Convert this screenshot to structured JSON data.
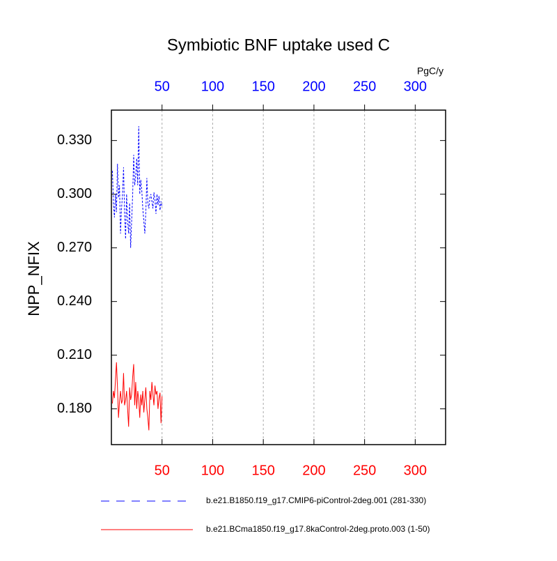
{
  "chart_data": {
    "type": "line",
    "title": "Symbiotic BNF uptake used C",
    "ylabel": "NPP_NFIX",
    "top_axis_label": "PgC/y",
    "x": [
      1,
      2,
      3,
      4,
      5,
      6,
      7,
      8,
      9,
      10,
      11,
      12,
      13,
      14,
      15,
      16,
      17,
      18,
      19,
      20,
      21,
      22,
      23,
      24,
      25,
      26,
      27,
      28,
      29,
      30,
      31,
      32,
      33,
      34,
      35,
      36,
      37,
      38,
      39,
      40,
      41,
      42,
      43,
      44,
      45,
      46,
      47,
      48,
      49,
      50
    ],
    "series": [
      {
        "name": "b.e21.B1850.f19_g17.CMIP6-piControl-2deg.001 (281-330)",
        "color": "#0000ff",
        "line_style": "dashed",
        "values": [
          0.313,
          0.295,
          0.287,
          0.3,
          0.29,
          0.317,
          0.298,
          0.305,
          0.278,
          0.292,
          0.3,
          0.315,
          0.29,
          0.275,
          0.3,
          0.285,
          0.278,
          0.295,
          0.27,
          0.285,
          0.3,
          0.322,
          0.305,
          0.31,
          0.32,
          0.305,
          0.338,
          0.3,
          0.308,
          0.302,
          0.292,
          0.285,
          0.278,
          0.29,
          0.309,
          0.295,
          0.292,
          0.298,
          0.3,
          0.296,
          0.292,
          0.301,
          0.297,
          0.289,
          0.3,
          0.294,
          0.299,
          0.291,
          0.296,
          0.293
        ]
      },
      {
        "name": "b.e21.BCma1850.f19_g17.8kaControl-2deg.proto.003 (1-50)",
        "color": "#ff0000",
        "line_style": "solid",
        "values": [
          0.183,
          0.19,
          0.186,
          0.196,
          0.206,
          0.192,
          0.175,
          0.184,
          0.19,
          0.183,
          0.185,
          0.2,
          0.182,
          0.185,
          0.19,
          0.18,
          0.17,
          0.192,
          0.185,
          0.188,
          0.198,
          0.205,
          0.182,
          0.195,
          0.18,
          0.19,
          0.185,
          0.175,
          0.188,
          0.182,
          0.19,
          0.178,
          0.185,
          0.192,
          0.18,
          0.175,
          0.168,
          0.19,
          0.185,
          0.195,
          0.188,
          0.182,
          0.193,
          0.188,
          0.19,
          0.18,
          0.186,
          0.189,
          0.172,
          0.187
        ]
      }
    ],
    "xlim": [
      0,
      330
    ],
    "xticks": [
      50,
      100,
      150,
      200,
      250,
      300
    ],
    "ylim": [
      0.16,
      0.347
    ],
    "yticks": [
      {
        "value": 0.18,
        "label": "0.180"
      },
      {
        "value": 0.21,
        "label": "0.210"
      },
      {
        "value": 0.24,
        "label": "0.240"
      },
      {
        "value": 0.27,
        "label": "0.270"
      },
      {
        "value": 0.3,
        "label": "0.300"
      },
      {
        "value": 0.33,
        "label": "0.330"
      }
    ],
    "grid": "x"
  }
}
